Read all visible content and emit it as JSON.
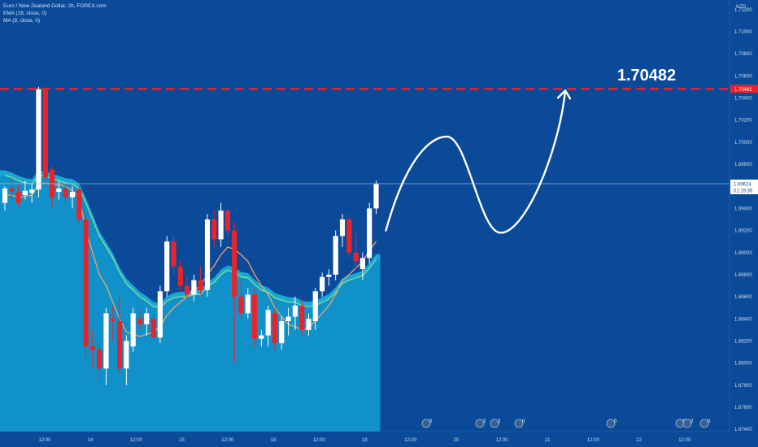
{
  "header": {
    "title": "Euro / New Zealand Dollar, 2h, FOREX.com",
    "indicators": [
      "EMA (18, close, 0)",
      "MA (9, close, 0)"
    ]
  },
  "price_axis": {
    "currency": "NZD",
    "labels": [
      "1.71200",
      "1.71000",
      "1.70800",
      "1.70600",
      "1.70400",
      "1.70200",
      "1.70000",
      "1.69800",
      "1.69600",
      "1.69400",
      "1.69200",
      "1.69000",
      "1.68800",
      "1.68600",
      "1.68400",
      "1.68200",
      "1.68000",
      "1.67800",
      "1.67600",
      "1.67400"
    ]
  },
  "time_axis": {
    "labels": [
      "12:00",
      "14",
      "12:00",
      "15",
      "12:00",
      "18",
      "12:00",
      "19",
      "12:00",
      "20",
      "12:00",
      "21",
      "12:00",
      "22",
      "12:00"
    ]
  },
  "target": {
    "value": 1.70482,
    "label": "1.70482",
    "axis_label": "1.70482"
  },
  "current_price": {
    "value": 1.69624,
    "label": "1.69624",
    "countdown": "01:19:36"
  },
  "event_markers": [
    "0",
    "2",
    "2",
    "0",
    "0",
    "0",
    "2",
    "0"
  ],
  "colors": {
    "background": "#0a4a99",
    "bull": "#ffffff",
    "bear": "#e8242a",
    "area": "#1191c9",
    "band": "#16a9d6",
    "ema": "#86dd8c",
    "ma": "#e7a86a",
    "target_line": "#e8242a",
    "projection": "#ffffff"
  },
  "chart_data": {
    "type": "candlestick",
    "symbol": "Euro / New Zealand Dollar",
    "interval": "2h",
    "ylim": [
      1.6735,
      1.7125
    ],
    "candles": [
      {
        "o": 1.6945,
        "h": 1.696,
        "l": 1.6938,
        "c": 1.6958
      },
      {
        "o": 1.6958,
        "h": 1.6968,
        "l": 1.695,
        "c": 1.6955
      },
      {
        "o": 1.6955,
        "h": 1.6962,
        "l": 1.6942,
        "c": 1.6945
      },
      {
        "o": 1.6952,
        "h": 1.6965,
        "l": 1.6948,
        "c": 1.6956
      },
      {
        "o": 1.6954,
        "h": 1.6962,
        "l": 1.6945,
        "c": 1.6957
      },
      {
        "o": 1.6957,
        "h": 1.705,
        "l": 1.695,
        "c": 1.7048
      },
      {
        "o": 1.7048,
        "h": 1.705,
        "l": 1.696,
        "c": 1.6968
      },
      {
        "o": 1.6975,
        "h": 1.6978,
        "l": 1.694,
        "c": 1.695
      },
      {
        "o": 1.6955,
        "h": 1.6965,
        "l": 1.6948,
        "c": 1.6958
      },
      {
        "o": 1.6958,
        "h": 1.6962,
        "l": 1.6945,
        "c": 1.695
      },
      {
        "o": 1.695,
        "h": 1.696,
        "l": 1.694,
        "c": 1.6955
      },
      {
        "o": 1.6957,
        "h": 1.696,
        "l": 1.6925,
        "c": 1.693
      },
      {
        "o": 1.693,
        "h": 1.6935,
        "l": 1.6805,
        "c": 1.6815
      },
      {
        "o": 1.6815,
        "h": 1.683,
        "l": 1.6795,
        "c": 1.6812
      },
      {
        "o": 1.6812,
        "h": 1.6818,
        "l": 1.6785,
        "c": 1.6795
      },
      {
        "o": 1.6795,
        "h": 1.685,
        "l": 1.678,
        "c": 1.6845
      },
      {
        "o": 1.684,
        "h": 1.6852,
        "l": 1.682,
        "c": 1.6838
      },
      {
        "o": 1.6838,
        "h": 1.686,
        "l": 1.679,
        "c": 1.6795
      },
      {
        "o": 1.6795,
        "h": 1.6825,
        "l": 1.678,
        "c": 1.682
      },
      {
        "o": 1.6815,
        "h": 1.685,
        "l": 1.681,
        "c": 1.6845
      },
      {
        "o": 1.684,
        "h": 1.6848,
        "l": 1.683,
        "c": 1.6835
      },
      {
        "o": 1.6835,
        "h": 1.685,
        "l": 1.6825,
        "c": 1.6845
      },
      {
        "o": 1.684,
        "h": 1.6845,
        "l": 1.682,
        "c": 1.6823
      },
      {
        "o": 1.6823,
        "h": 1.687,
        "l": 1.6818,
        "c": 1.6865
      },
      {
        "o": 1.6865,
        "h": 1.6915,
        "l": 1.686,
        "c": 1.691
      },
      {
        "o": 1.691,
        "h": 1.6915,
        "l": 1.688,
        "c": 1.6887
      },
      {
        "o": 1.6887,
        "h": 1.6893,
        "l": 1.6865,
        "c": 1.687
      },
      {
        "o": 1.687,
        "h": 1.6878,
        "l": 1.6858,
        "c": 1.6862
      },
      {
        "o": 1.6862,
        "h": 1.688,
        "l": 1.6856,
        "c": 1.6875
      },
      {
        "o": 1.6875,
        "h": 1.6888,
        "l": 1.6862,
        "c": 1.6866
      },
      {
        "o": 1.6866,
        "h": 1.6935,
        "l": 1.686,
        "c": 1.693
      },
      {
        "o": 1.693,
        "h": 1.6938,
        "l": 1.6905,
        "c": 1.6912
      },
      {
        "o": 1.6912,
        "h": 1.6945,
        "l": 1.6905,
        "c": 1.6938
      },
      {
        "o": 1.6938,
        "h": 1.694,
        "l": 1.6915,
        "c": 1.692
      },
      {
        "o": 1.692,
        "h": 1.6928,
        "l": 1.68,
        "c": 1.686
      },
      {
        "o": 1.686,
        "h": 1.6875,
        "l": 1.684,
        "c": 1.6845
      },
      {
        "o": 1.6845,
        "h": 1.6868,
        "l": 1.684,
        "c": 1.6862
      },
      {
        "o": 1.6862,
        "h": 1.6868,
        "l": 1.6815,
        "c": 1.6822
      },
      {
        "o": 1.6822,
        "h": 1.683,
        "l": 1.6815,
        "c": 1.6825
      },
      {
        "o": 1.6825,
        "h": 1.6852,
        "l": 1.6815,
        "c": 1.6848
      },
      {
        "o": 1.6845,
        "h": 1.685,
        "l": 1.6812,
        "c": 1.6818
      },
      {
        "o": 1.6818,
        "h": 1.6842,
        "l": 1.6812,
        "c": 1.6838
      },
      {
        "o": 1.6838,
        "h": 1.685,
        "l": 1.6825,
        "c": 1.6842
      },
      {
        "o": 1.6842,
        "h": 1.686,
        "l": 1.683,
        "c": 1.6852
      },
      {
        "o": 1.6852,
        "h": 1.6858,
        "l": 1.6825,
        "c": 1.683
      },
      {
        "o": 1.683,
        "h": 1.6845,
        "l": 1.6825,
        "c": 1.684
      },
      {
        "o": 1.6838,
        "h": 1.6868,
        "l": 1.683,
        "c": 1.6865
      },
      {
        "o": 1.6865,
        "h": 1.6882,
        "l": 1.686,
        "c": 1.6878
      },
      {
        "o": 1.6878,
        "h": 1.6885,
        "l": 1.687,
        "c": 1.688
      },
      {
        "o": 1.688,
        "h": 1.692,
        "l": 1.6875,
        "c": 1.6915
      },
      {
        "o": 1.6915,
        "h": 1.6935,
        "l": 1.6905,
        "c": 1.693
      },
      {
        "o": 1.693,
        "h": 1.6935,
        "l": 1.6895,
        "c": 1.69
      },
      {
        "o": 1.69,
        "h": 1.6918,
        "l": 1.6885,
        "c": 1.6892
      },
      {
        "o": 1.6885,
        "h": 1.69,
        "l": 1.6875,
        "c": 1.6895
      },
      {
        "o": 1.6895,
        "h": 1.6945,
        "l": 1.689,
        "c": 1.694
      },
      {
        "o": 1.694,
        "h": 1.6965,
        "l": 1.6935,
        "c": 1.6962
      }
    ],
    "ema": [
      1.697,
      1.6968,
      1.6965,
      1.6963,
      1.6962,
      1.697,
      1.6969,
      1.6967,
      1.6965,
      1.6963,
      1.6962,
      1.6958,
      1.6945,
      1.693,
      1.6915,
      1.6905,
      1.6895,
      1.6882,
      1.6872,
      1.6866,
      1.686,
      1.6856,
      1.6851,
      1.685,
      1.6856,
      1.6859,
      1.686,
      1.686,
      1.6862,
      1.6862,
      1.6869,
      1.6873,
      1.688,
      1.6884,
      1.6882,
      1.6878,
      1.6877,
      1.6871,
      1.6866,
      1.6864,
      1.6859,
      1.6857,
      1.6855,
      1.6855,
      1.6852,
      1.6851,
      1.6852,
      1.6855,
      1.6858,
      1.6864,
      1.6872,
      1.6875,
      1.6877,
      1.6879,
      1.6886,
      1.6894
    ],
    "ma": [
      1.6952,
      1.6952,
      1.695,
      1.6951,
      1.6952,
      1.6962,
      1.6963,
      1.6962,
      1.6961,
      1.696,
      1.6956,
      1.695,
      1.692,
      1.69,
      1.688,
      1.687,
      1.6855,
      1.684,
      1.6828,
      1.6826,
      1.6824,
      1.6826,
      1.6828,
      1.6833,
      1.6843,
      1.685,
      1.6855,
      1.686,
      1.6866,
      1.687,
      1.688,
      1.6888,
      1.6898,
      1.6905,
      1.6903,
      1.6898,
      1.6892,
      1.688,
      1.687,
      1.6862,
      1.685,
      1.6842,
      1.6835,
      1.6833,
      1.683,
      1.6832,
      1.6838,
      1.6845,
      1.6852,
      1.6862,
      1.6875,
      1.688,
      1.6886,
      1.6892,
      1.6902,
      1.691
    ]
  }
}
